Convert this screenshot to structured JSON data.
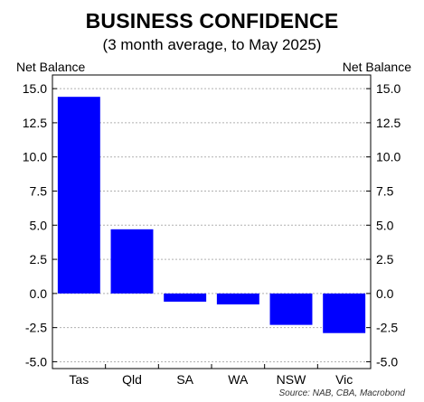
{
  "chart_data": {
    "type": "bar",
    "title": "BUSINESS CONFIDENCE",
    "subtitle": "(3 month average, to May 2025)",
    "ylabel_left": "Net Balance",
    "ylabel_right": "Net Balance",
    "categories": [
      "Tas",
      "Qld",
      "SA",
      "WA",
      "NSW",
      "Vic"
    ],
    "values": [
      14.4,
      4.7,
      -0.6,
      -0.8,
      -2.3,
      -2.9
    ],
    "ylim": [
      -5.5,
      16.0
    ],
    "yticks": [
      "15.0",
      "12.5",
      "10.0",
      "7.5",
      "5.0",
      "2.5",
      "0.0",
      "-2.5",
      "-5.0"
    ],
    "ytick_values": [
      15.0,
      12.5,
      10.0,
      7.5,
      5.0,
      2.5,
      0.0,
      -2.5,
      -5.0
    ],
    "grid": true,
    "bar_color": "#0000ff",
    "source": "Source: NAB, CBA, Macrobond"
  }
}
